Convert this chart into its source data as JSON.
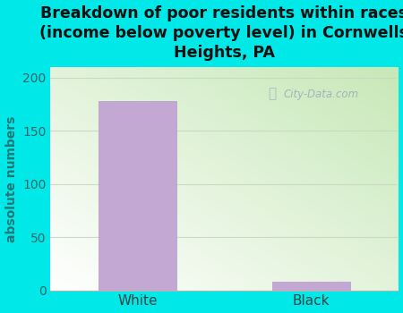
{
  "categories": [
    "White",
    "Black"
  ],
  "values": [
    178,
    8
  ],
  "bar_color": "#c4a8d4",
  "bar_edgecolor": "#b898c8",
  "title": "Breakdown of poor residents within races\n(income below poverty level) in Cornwells\nHeights, PA",
  "ylabel": "absolute numbers",
  "ylim": [
    0,
    210
  ],
  "yticks": [
    0,
    50,
    100,
    150,
    200
  ],
  "bg_color": "#00e8e8",
  "watermark": "City-Data.com",
  "grid_color": "#c8d8c0",
  "title_fontsize": 12.5,
  "ylabel_fontsize": 10,
  "tick_fontsize": 10,
  "plot_left_color": "#c8e8b8",
  "plot_right_color": "#f0f8ee"
}
